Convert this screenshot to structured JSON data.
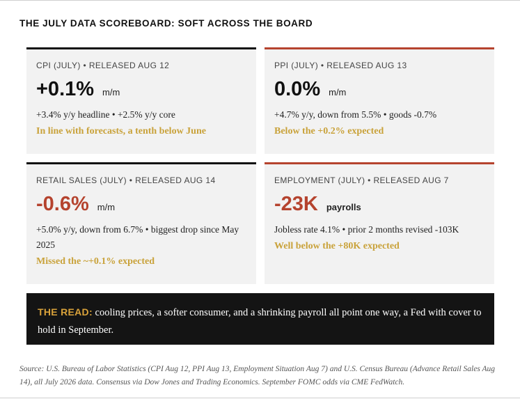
{
  "title": "THE JULY DATA SCOREBOARD: SOFT ACROSS THE BOARD",
  "cards": [
    {
      "label": "CPI (JULY) • RELEASED AUG 12",
      "value": "+0.1%",
      "unit": "m/m",
      "detail": "+3.4% y/y headline • +2.5% y/y core",
      "note": "In line with forecasts, a tenth below June"
    },
    {
      "label": "PPI (JULY) • RELEASED AUG 13",
      "value": "0.0%",
      "unit": "m/m",
      "detail": "+4.7% y/y, down from 5.5% • goods -0.7%",
      "note": "Below the +0.2% expected"
    },
    {
      "label": "RETAIL SALES (JULY) • RELEASED AUG 14",
      "value": "-0.6%",
      "unit": "m/m",
      "detail": "+5.0% y/y, down from 6.7% • biggest drop since May 2025",
      "note": "Missed the ~+0.1% expected"
    },
    {
      "label": "EMPLOYMENT (JULY) • RELEASED AUG 7",
      "value": "-23K",
      "unit": "payrolls",
      "detail": "Jobless rate 4.1% • prior 2 months revised -103K",
      "note": "Well below the +80K expected"
    }
  ],
  "read": {
    "label": "THE READ:",
    "text": "cooling prices, a softer consumer, and a shrinking payroll all point one way, a Fed with cover to hold in September."
  },
  "source": "Source: U.S. Bureau of Labor Statistics (CPI Aug 12, PPI Aug 13, Employment Situation Aug 7) and U.S. Census Bureau (Advance Retail Sales Aug 14), all July 2026 data. Consensus via Dow Jones and Trading Economics. September FOMC odds via CME FedWatch.",
  "colors": {
    "negative": "#b5432e",
    "note": "#c9a23a",
    "read_label": "#d9a23a",
    "card_bg": "#f2f2f2",
    "read_bg": "#141414"
  }
}
